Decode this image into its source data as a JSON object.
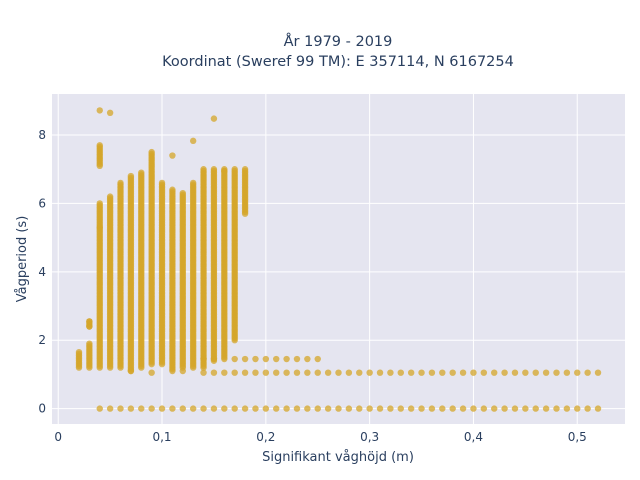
{
  "chart_data": {
    "type": "scatter",
    "title_line1": "År 1979 - 2019",
    "title_line2": "Koordinat (Sweref 99 TM): E 357114, N 6167254",
    "xlabel": "Signifikant våghöjd (m)",
    "ylabel": "Vågperiod (s)",
    "xlim": [
      -0.006,
      0.546
    ],
    "ylim": [
      -0.45,
      9.2
    ],
    "x_ticks": [
      {
        "value": 0,
        "label": "0"
      },
      {
        "value": 0.1,
        "label": "0,1"
      },
      {
        "value": 0.2,
        "label": "0,2"
      },
      {
        "value": 0.3,
        "label": "0,3"
      },
      {
        "value": 0.4,
        "label": "0,4"
      },
      {
        "value": 0.5,
        "label": "0,5"
      }
    ],
    "y_ticks": [
      {
        "value": 0,
        "label": "0"
      },
      {
        "value": 2,
        "label": "2"
      },
      {
        "value": 4,
        "label": "4"
      },
      {
        "value": 6,
        "label": "6"
      },
      {
        "value": 8,
        "label": "8"
      }
    ],
    "grid": true,
    "legend": false,
    "marker_color": "#d4a52a",
    "background_color": "#e5e5f0",
    "grid_color": "#ffffff",
    "text_color": "#2a3f5f",
    "columns": [
      {
        "x": 0.02,
        "ranges": [
          [
            1.2,
            1.65
          ]
        ]
      },
      {
        "x": 0.03,
        "ranges": [
          [
            1.2,
            1.9
          ],
          [
            2.4,
            2.55
          ]
        ]
      },
      {
        "x": 0.04,
        "ranges": [
          [
            1.2,
            6.0
          ],
          [
            7.1,
            7.7
          ]
        ]
      },
      {
        "x": 0.05,
        "ranges": [
          [
            1.2,
            6.2
          ]
        ]
      },
      {
        "x": 0.06,
        "ranges": [
          [
            1.2,
            6.6
          ]
        ]
      },
      {
        "x": 0.07,
        "ranges": [
          [
            1.1,
            6.8
          ]
        ]
      },
      {
        "x": 0.08,
        "ranges": [
          [
            1.2,
            6.9
          ]
        ]
      },
      {
        "x": 0.09,
        "ranges": [
          [
            1.3,
            7.5
          ]
        ]
      },
      {
        "x": 0.1,
        "ranges": [
          [
            1.3,
            6.6
          ]
        ]
      },
      {
        "x": 0.11,
        "ranges": [
          [
            1.1,
            6.4
          ]
        ]
      },
      {
        "x": 0.12,
        "ranges": [
          [
            1.2,
            6.3
          ]
        ]
      },
      {
        "x": 0.13,
        "ranges": [
          [
            1.2,
            6.6
          ]
        ]
      },
      {
        "x": 0.14,
        "ranges": [
          [
            1.2,
            7.0
          ]
        ]
      },
      {
        "x": 0.15,
        "ranges": [
          [
            1.4,
            7.0
          ]
        ]
      },
      {
        "x": 0.16,
        "ranges": [
          [
            1.5,
            7.0
          ]
        ]
      },
      {
        "x": 0.17,
        "ranges": [
          [
            2.0,
            7.0
          ]
        ]
      },
      {
        "x": 0.18,
        "ranges": [
          [
            5.7,
            7.0
          ]
        ]
      }
    ],
    "bands": [
      {
        "y": 1.45,
        "x_from": 0.14,
        "x_to": 0.25
      },
      {
        "y": 1.05,
        "x_from": 0.14,
        "x_to": 0.52
      },
      {
        "y": 0.0,
        "x_from": 0.04,
        "x_to": 0.52
      }
    ],
    "outliers": [
      [
        0.04,
        8.72
      ],
      [
        0.05,
        8.65
      ],
      [
        0.15,
        8.48
      ],
      [
        0.13,
        7.83
      ],
      [
        0.11,
        7.4
      ],
      [
        0.04,
        5.3
      ],
      [
        0.03,
        2.4
      ],
      [
        0.03,
        2.55
      ],
      [
        0.07,
        1.1
      ],
      [
        0.09,
        1.05
      ],
      [
        0.12,
        1.1
      ],
      [
        0.16,
        6.95
      ]
    ]
  }
}
